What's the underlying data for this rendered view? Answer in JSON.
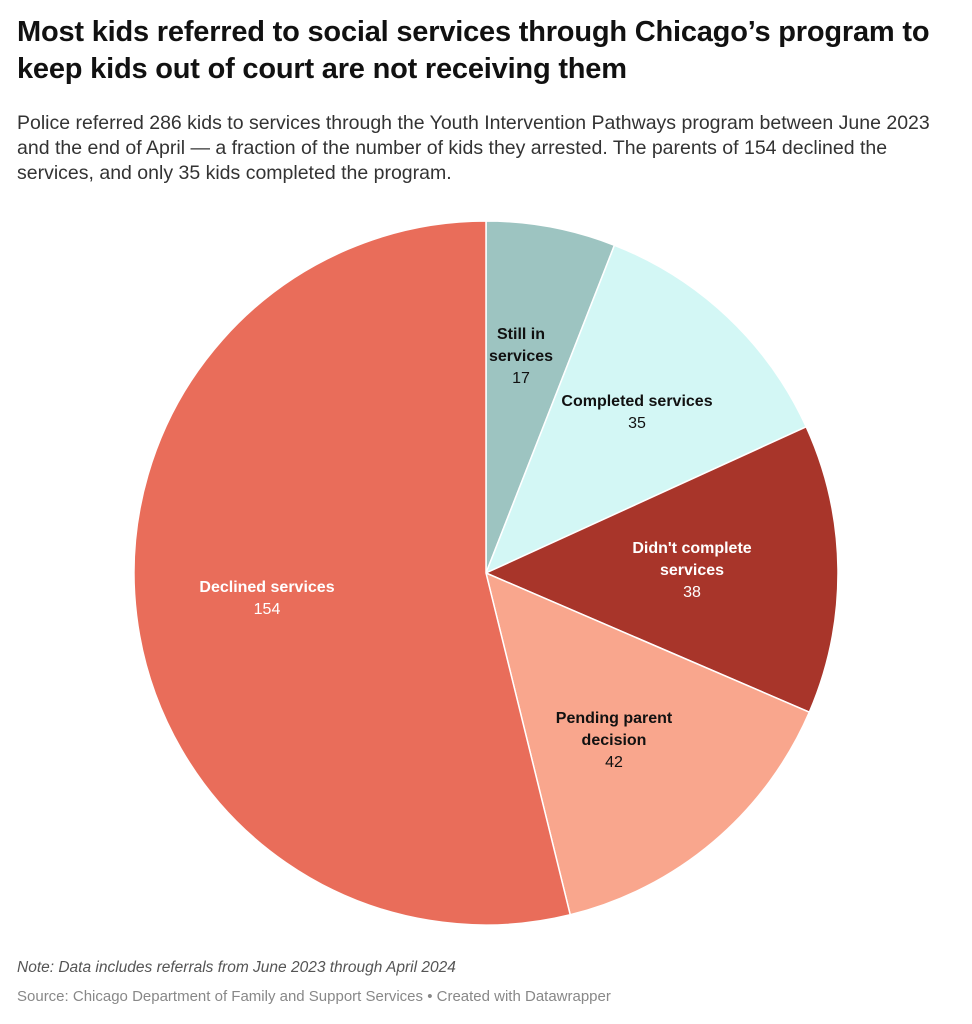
{
  "title": "Most kids referred to social services through Chicago’s program to keep kids out of court are not receiving them",
  "subtitle": "Police referred 286 kids to services through the Youth Intervention Pathways program between June 2023 and the end of April — a fraction of the number of kids they arrested. The parents of 154 declined the services, and only 35 kids completed the program.",
  "note": "Note: Data includes referrals from June 2023 through April 2024",
  "source": "Source: Chicago Department of Family and Support Services • Created with Datawrapper",
  "chart_data": {
    "type": "pie",
    "total": 286,
    "start": "top, clockwise",
    "slices": [
      {
        "label": "Still in services",
        "value": 17,
        "color": "#9dc4c1",
        "text_color": "#111111"
      },
      {
        "label": "Completed services",
        "value": 35,
        "color": "#d3f7f5",
        "text_color": "#111111"
      },
      {
        "label": "Didn't complete services",
        "value": 38,
        "color": "#a8352a",
        "text_color": "#ffffff"
      },
      {
        "label": "Pending parent decision",
        "value": 42,
        "color": "#f9a68d",
        "text_color": "#111111"
      },
      {
        "label": "Declined services",
        "value": 154,
        "color": "#e96d5a",
        "text_color": "#ffffff"
      }
    ]
  }
}
